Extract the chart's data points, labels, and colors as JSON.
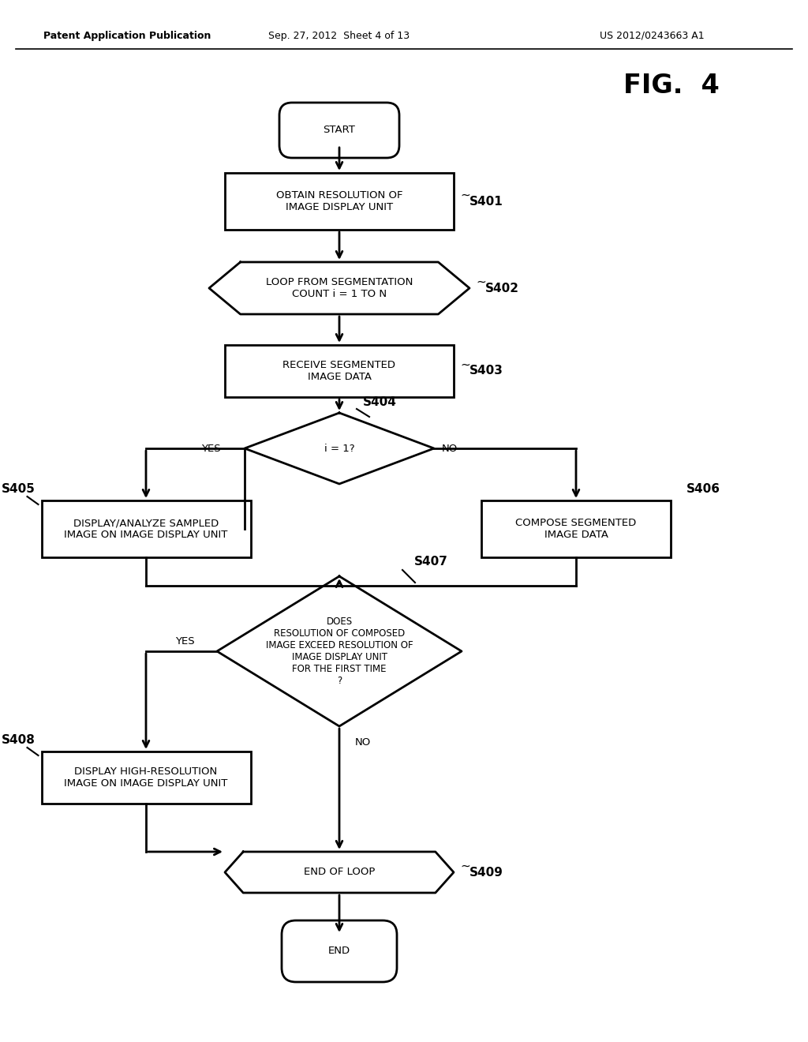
{
  "title": "FIG.  4",
  "header_left": "Patent Application Publication",
  "header_mid": "Sep. 27, 2012  Sheet 4 of 13",
  "header_right": "US 2012/0243663 A1",
  "bg_color": "#ffffff",
  "line_color": "#000000",
  "fig_width": 10.24,
  "fig_height": 13.2,
  "dpi": 100
}
